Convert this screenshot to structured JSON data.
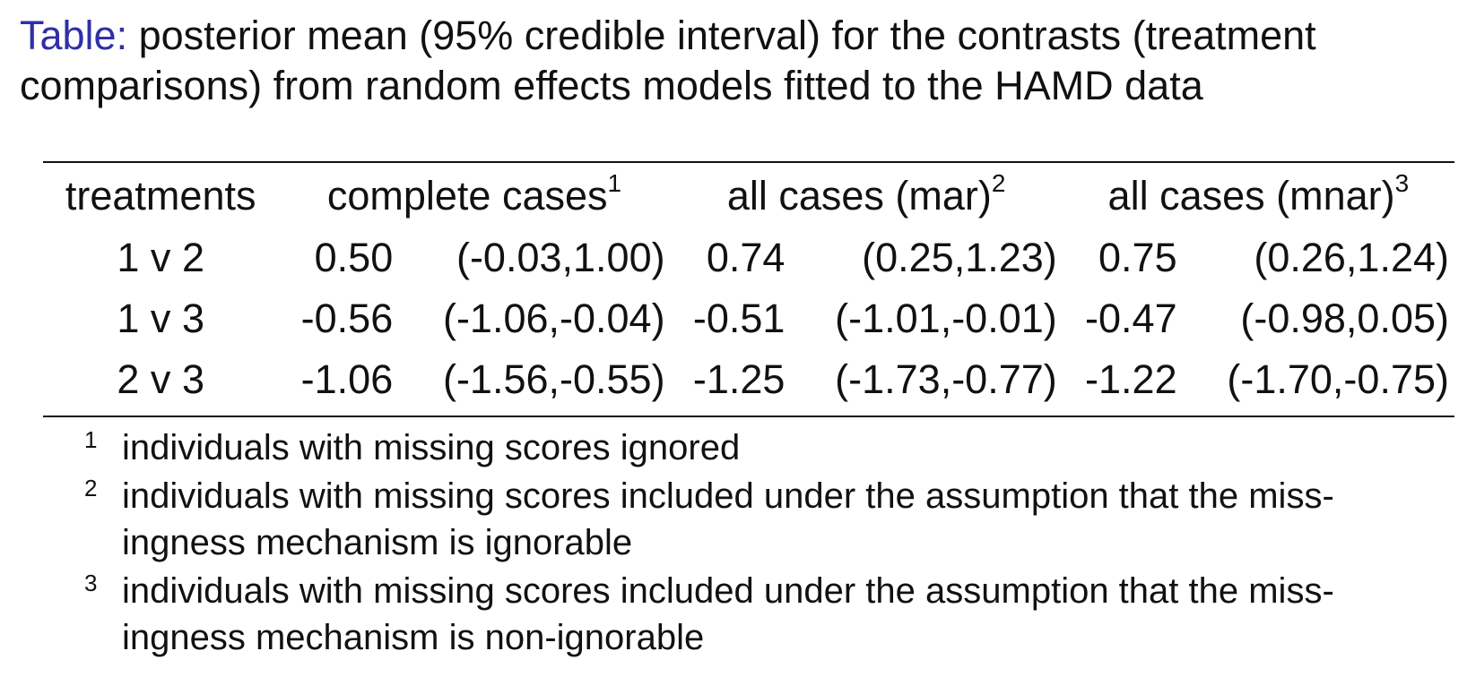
{
  "caption": {
    "label": "Table:",
    "text": "posterior mean (95% credible interval) for the contrasts (treatment comparisons) from random effects models fitted to the HAMD data"
  },
  "table": {
    "headers": {
      "treatments": "treatments",
      "complete": "complete cases",
      "complete_sup": "1",
      "mar": "all cases (mar)",
      "mar_sup": "2",
      "mnar": "all cases (mnar)",
      "mnar_sup": "3"
    },
    "rows": [
      {
        "treatment": "1 v 2",
        "cc_mean": "0.50",
        "cc_ci": "(-0.03,1.00)",
        "mar_mean": "0.74",
        "mar_ci": "(0.25,1.23)",
        "mnar_mean": "0.75",
        "mnar_ci": "(0.26,1.24)"
      },
      {
        "treatment": "1 v 3",
        "cc_mean": "-0.56",
        "cc_ci": "(-1.06,-0.04)",
        "mar_mean": "-0.51",
        "mar_ci": "(-1.01,-0.01)",
        "mnar_mean": "-0.47",
        "mnar_ci": "(-0.98,0.05)"
      },
      {
        "treatment": "2 v 3",
        "cc_mean": "-1.06",
        "cc_ci": "(-1.56,-0.55)",
        "mar_mean": "-1.25",
        "mar_ci": "(-1.73,-0.77)",
        "mnar_mean": "-1.22",
        "mnar_ci": "(-1.70,-0.75)"
      }
    ]
  },
  "footnotes": [
    {
      "mark": "1",
      "text": "individuals with missing scores ignored"
    },
    {
      "mark": "2",
      "text": "individuals with missing scores included under the assumption that the miss-ingness mechanism is ignorable"
    },
    {
      "mark": "3",
      "text": "individuals with missing scores included under the assumption that the miss-ingness mechanism is non-ignorable"
    }
  ]
}
